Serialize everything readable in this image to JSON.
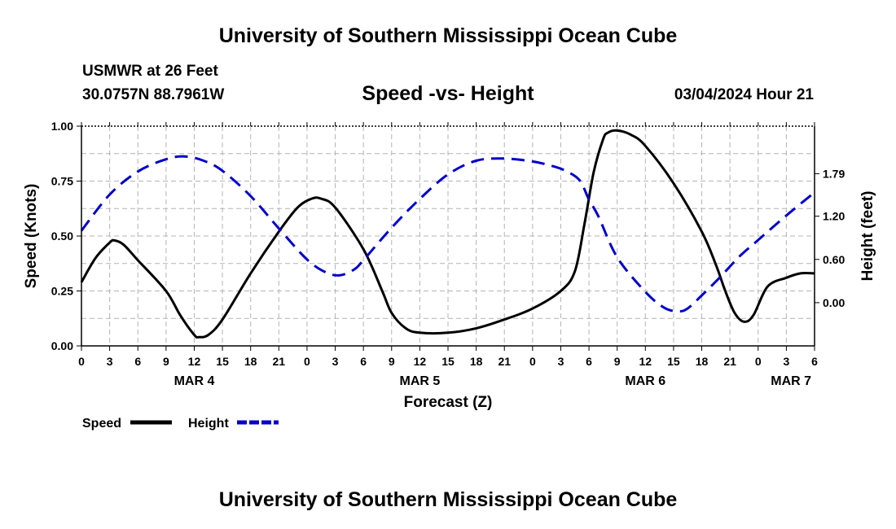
{
  "header": {
    "title": "University of Southern Mississippi Ocean Cube",
    "station": "USMWR at 26 Feet",
    "coordinates": "30.0757N  88.7961W",
    "date": "03/04/2024 Hour 21"
  },
  "footer": {
    "title": "University of Southern Mississippi Ocean Cube"
  },
  "colors": {
    "speed": "#000000",
    "height": "#0000cc",
    "grid": "#b4b4b4"
  },
  "chart_data": {
    "type": "line",
    "title": "Speed -vs- Height",
    "xlabel": "Forecast (Z)",
    "ylabel": "Speed (Knots)",
    "ylabel_right": "Height (feet)",
    "x_unit": "hours since MAR 4 00Z",
    "xlim": [
      0,
      78
    ],
    "ylim": [
      0,
      1
    ],
    "ylim_right": [
      -0.6,
      2.45
    ],
    "x_ticks": [
      {
        "x": 0,
        "label": "0"
      },
      {
        "x": 3,
        "label": "3"
      },
      {
        "x": 6,
        "label": "6"
      },
      {
        "x": 9,
        "label": "9"
      },
      {
        "x": 12,
        "label": "12"
      },
      {
        "x": 15,
        "label": "15"
      },
      {
        "x": 18,
        "label": "18"
      },
      {
        "x": 21,
        "label": "21"
      },
      {
        "x": 24,
        "label": "0"
      },
      {
        "x": 27,
        "label": "3"
      },
      {
        "x": 30,
        "label": "6"
      },
      {
        "x": 33,
        "label": "9"
      },
      {
        "x": 36,
        "label": "12"
      },
      {
        "x": 39,
        "label": "15"
      },
      {
        "x": 42,
        "label": "18"
      },
      {
        "x": 45,
        "label": "21"
      },
      {
        "x": 48,
        "label": "0"
      },
      {
        "x": 51,
        "label": "3"
      },
      {
        "x": 54,
        "label": "6"
      },
      {
        "x": 57,
        "label": "9"
      },
      {
        "x": 60,
        "label": "12"
      },
      {
        "x": 63,
        "label": "15"
      },
      {
        "x": 66,
        "label": "18"
      },
      {
        "x": 69,
        "label": "21"
      },
      {
        "x": 72,
        "label": "0"
      },
      {
        "x": 75,
        "label": "3"
      },
      {
        "x": 78,
        "label": "6"
      }
    ],
    "day_labels": [
      {
        "x": 12,
        "label": "MAR 4"
      },
      {
        "x": 36,
        "label": "MAR 5"
      },
      {
        "x": 60,
        "label": "MAR 6"
      },
      {
        "x": 75.5,
        "label": "MAR 7"
      }
    ],
    "y_ticks": [
      {
        "value": 0,
        "label": "0.00"
      },
      {
        "value": 0.25,
        "label": "0.25"
      },
      {
        "value": 0.5,
        "label": "0.50"
      },
      {
        "value": 0.75,
        "label": "0.75"
      },
      {
        "value": 1,
        "label": "1.00"
      }
    ],
    "y_ticks_right": [
      {
        "value": 0,
        "label": "0.00"
      },
      {
        "value": 0.6,
        "label": "0.60"
      },
      {
        "value": 1.2,
        "label": "1.20"
      },
      {
        "value": 1.79,
        "label": "1.79"
      }
    ],
    "legend": [
      {
        "name": "Speed",
        "style": "solid"
      },
      {
        "name": "Height",
        "style": "dashed"
      }
    ],
    "series": [
      {
        "name": "Speed",
        "axis": "left",
        "style": "solid",
        "x": [
          0,
          1.5,
          3,
          3.5,
          4.5,
          6,
          9,
          10.5,
          12,
          12.5,
          13.5,
          15,
          18,
          21,
          23,
          24.5,
          25.5,
          27,
          30,
          32,
          33,
          34.5,
          36,
          39,
          42,
          45,
          48,
          51,
          52.5,
          53.5,
          54.5,
          55.5,
          56,
          57,
          58.5,
          60,
          63,
          66,
          67.5,
          68.5,
          69.5,
          70.5,
          71.5,
          73,
          75,
          76.5,
          78
        ],
        "y": [
          0.29,
          0.4,
          0.47,
          0.48,
          0.46,
          0.39,
          0.25,
          0.14,
          0.05,
          0.04,
          0.05,
          0.12,
          0.33,
          0.52,
          0.63,
          0.67,
          0.67,
          0.63,
          0.44,
          0.25,
          0.15,
          0.08,
          0.06,
          0.06,
          0.08,
          0.12,
          0.17,
          0.25,
          0.34,
          0.55,
          0.79,
          0.94,
          0.97,
          0.98,
          0.96,
          0.91,
          0.74,
          0.52,
          0.37,
          0.25,
          0.15,
          0.11,
          0.14,
          0.27,
          0.31,
          0.33,
          0.33
        ]
      },
      {
        "name": "Height",
        "axis": "right",
        "style": "dashed",
        "x": [
          0,
          3,
          6,
          9,
          11,
          13,
          15,
          18,
          21,
          24,
          26,
          27.5,
          29,
          30,
          33,
          36,
          39,
          42,
          45,
          48,
          50,
          51.5,
          53,
          54,
          55,
          57,
          60,
          62,
          63.5,
          64.5,
          66,
          68,
          70,
          72,
          75,
          78
        ],
        "y": [
          1.0,
          1.5,
          1.82,
          1.99,
          2.03,
          1.97,
          1.83,
          1.48,
          1.03,
          0.6,
          0.42,
          0.38,
          0.46,
          0.59,
          1.04,
          1.44,
          1.78,
          1.97,
          2.0,
          1.96,
          1.9,
          1.83,
          1.7,
          1.43,
          1.2,
          0.63,
          0.15,
          -0.07,
          -0.12,
          -0.08,
          0.1,
          0.36,
          0.64,
          0.87,
          1.21,
          1.53
        ]
      }
    ]
  }
}
